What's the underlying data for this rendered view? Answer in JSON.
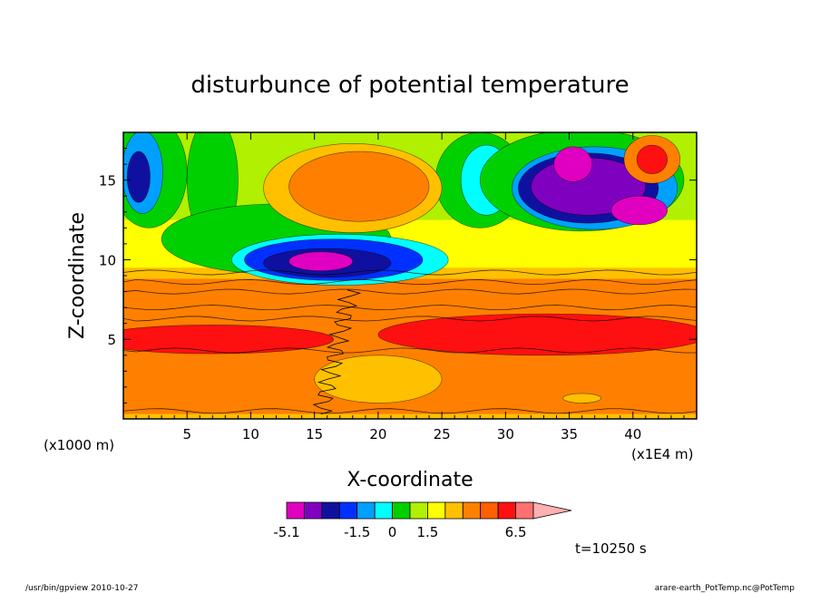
{
  "chart_data": {
    "type": "heatmap",
    "title": "disturbunce of potential temperature",
    "xlabel": "X-coordinate",
    "ylabel": "Z-coordinate",
    "x_unit_left": "(x1000 m)",
    "x_unit_right": "(x1E4 m)",
    "xlim": [
      0,
      45
    ],
    "ylim": [
      0,
      18
    ],
    "xticks": [
      5,
      10,
      15,
      20,
      25,
      30,
      35,
      40
    ],
    "yticks": [
      5,
      10,
      15
    ],
    "xtick_labels": [
      "5",
      "10",
      "15",
      "20",
      "25",
      "30",
      "35",
      "40"
    ],
    "ytick_labels": [
      "5",
      "10",
      "15"
    ],
    "colorbar": {
      "colors": [
        "#e000c0",
        "#8000c0",
        "#1010a0",
        "#0030ff",
        "#00a0ff",
        "#00ffff",
        "#00d000",
        "#b0f000",
        "#ffff00",
        "#ffc000",
        "#ff8000",
        "#ff6000",
        "#ff1010",
        "#ff7070",
        "#ffb0b0"
      ],
      "labels": [
        "-5.1",
        "-1.5",
        "0",
        "1.5",
        "6.5"
      ],
      "label_index": [
        0,
        4,
        6,
        8,
        13
      ]
    },
    "regions": [
      {
        "name": "lower-orange-layer",
        "x": [
          0,
          45
        ],
        "y": [
          0.3,
          9
        ],
        "level": "1.5 to 3"
      },
      {
        "name": "red-band-left",
        "x": [
          0,
          16
        ],
        "y": [
          4.3,
          6
        ],
        "level": "3 to 4"
      },
      {
        "name": "red-band-right",
        "x": [
          21,
          45
        ],
        "y": [
          4.5,
          6.3
        ],
        "level": "3 to 4"
      },
      {
        "name": "blue-anomaly",
        "x": [
          10,
          25
        ],
        "y": [
          8.8,
          11
        ],
        "level": "-5.1 to -2"
      },
      {
        "name": "upper-orange-plume",
        "x": [
          10,
          26
        ],
        "y": [
          12,
          17.3
        ],
        "level": "1.5 to 3"
      },
      {
        "name": "magenta-core-right",
        "x": [
          32,
          42
        ],
        "y": [
          12.5,
          16.8
        ],
        "level": "-5.1 to -3"
      },
      {
        "name": "warm-core-top-right",
        "x": [
          40,
          44
        ],
        "y": [
          15,
          17.5
        ],
        "level": "3 to 6.5"
      }
    ]
  },
  "annotations": {
    "time": "t=10250 s",
    "footer_left": "/usr/bin/gpview  2010-10-27",
    "footer_right": "arare-earth_PotTemp.nc@PotTemp"
  }
}
